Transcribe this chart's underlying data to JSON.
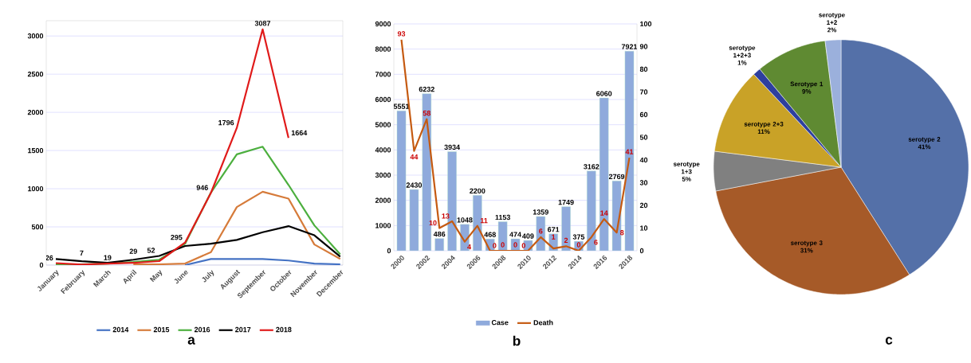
{
  "chart_data": [
    {
      "type": "line",
      "categories": [
        "January",
        "February",
        "March",
        "April",
        "May",
        "June",
        "July",
        "August",
        "September",
        "October",
        "November",
        "December"
      ],
      "series": [
        {
          "name": "2014",
          "color": "#4472c4",
          "values": [
            null,
            null,
            null,
            null,
            null,
            0,
            80,
            80,
            80,
            60,
            20,
            10
          ]
        },
        {
          "name": "2015",
          "color": "#d67b3a",
          "values": [
            null,
            null,
            null,
            10,
            10,
            20,
            170,
            760,
            960,
            870,
            270,
            80
          ]
        },
        {
          "name": "2016",
          "color": "#4caf3e",
          "values": [
            10,
            10,
            20,
            40,
            70,
            280,
            950,
            1450,
            1550,
            1050,
            520,
            140
          ]
        },
        {
          "name": "2017",
          "color": "#000000",
          "values": [
            80,
            50,
            30,
            70,
            120,
            250,
            280,
            330,
            430,
            510,
            390,
            110
          ]
        },
        {
          "name": "2018",
          "color": "#e01a1a",
          "values": [
            26,
            7,
            19,
            29,
            52,
            295,
            946,
            1796,
            3087,
            1664,
            null,
            null
          ],
          "value_labels": [
            "26",
            "7",
            "19",
            "29",
            "52",
            "295",
            "946",
            "1796",
            "3087",
            "1664",
            null,
            null
          ]
        }
      ],
      "ylim": [
        0,
        3200
      ],
      "yticks": [
        0,
        500,
        1000,
        1500,
        2000,
        2500,
        3000
      ],
      "grid": "y",
      "legend": "bottom",
      "annotations": [
        "a"
      ]
    },
    {
      "type": "bar",
      "categories": [
        "2000",
        null,
        "2002",
        null,
        "2004",
        null,
        "2006",
        null,
        "2008",
        null,
        "2010",
        null,
        "2012",
        null,
        "2014",
        null,
        "2016",
        null,
        "2018"
      ],
      "series": [
        {
          "name": "Case",
          "color": "#8faadc",
          "values": [
            5551,
            2430,
            6232,
            486,
            3934,
            1048,
            2200,
            468,
            1153,
            474,
            409,
            1359,
            671,
            1749,
            375,
            3162,
            6060,
            2769,
            7921
          ]
        },
        {
          "name": "Death",
          "type": "line",
          "axis": "y2",
          "color": "#c55a11",
          "values": [
            93,
            44,
            58,
            10,
            13,
            4,
            11,
            0,
            0,
            0,
            0,
            6,
            1,
            2,
            0,
            6,
            14,
            8,
            41
          ]
        }
      ],
      "ylim": [
        0,
        9000
      ],
      "yticks": [
        0,
        1000,
        2000,
        3000,
        4000,
        5000,
        6000,
        7000,
        8000,
        9000
      ],
      "y2lim": [
        0,
        100
      ],
      "y2ticks": [
        0,
        10,
        20,
        30,
        40,
        50,
        60,
        70,
        80,
        90,
        100
      ],
      "grid": "y",
      "legend": "bottom",
      "data_labels": true,
      "annotations": [
        "b"
      ]
    },
    {
      "type": "pie",
      "categories": [
        "serotype 2",
        "serotype 3",
        "serotype 1+3",
        "serotype 2+3",
        "serotype 1+2+3",
        "Serotype 1",
        "serotype 1+2"
      ],
      "values": [
        41,
        31,
        5,
        11,
        1,
        9,
        2
      ],
      "value_labels": [
        "41%",
        "31%",
        "5%",
        "11%",
        "1%",
        "9%",
        "2%"
      ],
      "colors": [
        "#5470a8",
        "#a65a28",
        "#808080",
        "#c9a227",
        "#2e3f9e",
        "#5f8a32",
        "#9bb0dc"
      ],
      "annotations": [
        "c"
      ]
    }
  ]
}
